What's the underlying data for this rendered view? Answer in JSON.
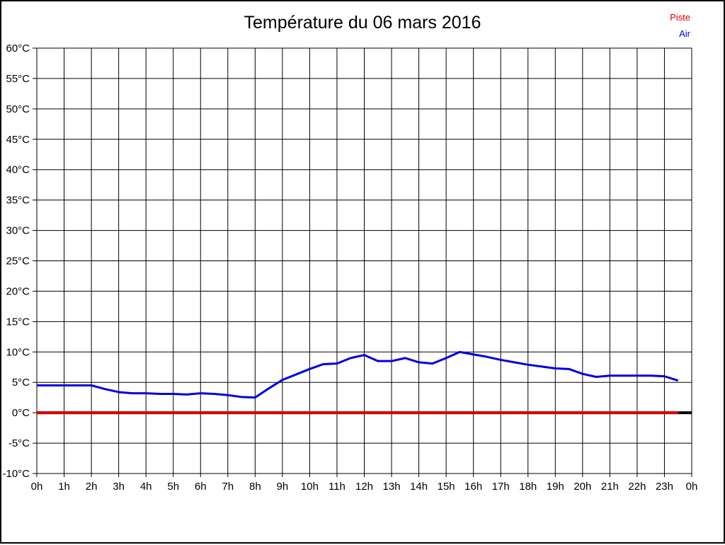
{
  "legend": {
    "items": [
      {
        "label": "Piste",
        "color": "#dd0000"
      },
      {
        "label": "Air",
        "color": "#0000dd"
      }
    ]
  },
  "chart_data": {
    "type": "line",
    "title": "Température du 06 mars 2016",
    "xlabel": "",
    "ylabel": "",
    "xlim": [
      0,
      24
    ],
    "ylim": [
      -10,
      60
    ],
    "y_tick_step": 5,
    "grid": true,
    "legend_position": "top-right",
    "zero_axis_emphasized": true,
    "x_tick_labels": [
      "0h",
      "1h",
      "2h",
      "3h",
      "4h",
      "5h",
      "6h",
      "7h",
      "8h",
      "9h",
      "10h",
      "11h",
      "12h",
      "13h",
      "14h",
      "15h",
      "16h",
      "17h",
      "18h",
      "19h",
      "20h",
      "21h",
      "22h",
      "23h",
      "0h"
    ],
    "y_tick_labels": [
      "60°C",
      "55°C",
      "50°C",
      "45°C",
      "40°C",
      "35°C",
      "30°C",
      "25°C",
      "20°C",
      "15°C",
      "10°C",
      "5°C",
      "0°C",
      "-5°C",
      "-10°C"
    ],
    "series": [
      {
        "name": "Piste",
        "color": "#dd0000",
        "line_width": 4,
        "x": [
          0,
          23.5
        ],
        "values": [
          0,
          0
        ]
      },
      {
        "name": "Air",
        "color": "#0000dd",
        "line_width": 3,
        "x": [
          0,
          0.5,
          1,
          1.5,
          2,
          2.5,
          3,
          3.5,
          4,
          4.5,
          5,
          5.5,
          6,
          6.5,
          7,
          7.5,
          8,
          8.5,
          9,
          9.5,
          10,
          10.5,
          11,
          11.5,
          12,
          12.5,
          13,
          13.5,
          14,
          14.5,
          15,
          15.5,
          16,
          16.5,
          17,
          17.5,
          18,
          18.5,
          19,
          19.5,
          20,
          20.5,
          21,
          21.5,
          22,
          22.5,
          23,
          23.5
        ],
        "values": [
          4.5,
          4.5,
          4.5,
          4.5,
          4.5,
          3.9,
          3.4,
          3.2,
          3.2,
          3.1,
          3.1,
          3.0,
          3.2,
          3.1,
          2.9,
          2.6,
          2.5,
          4.0,
          5.4,
          6.3,
          7.2,
          8.0,
          8.1,
          9.0,
          9.5,
          8.5,
          8.5,
          9.0,
          8.3,
          8.1,
          9.0,
          10.0,
          9.6,
          9.2,
          8.7,
          8.3,
          7.9,
          7.6,
          7.3,
          7.2,
          6.4,
          5.9,
          6.1,
          6.1,
          6.1,
          6.1,
          6.0,
          5.3
        ]
      }
    ]
  }
}
